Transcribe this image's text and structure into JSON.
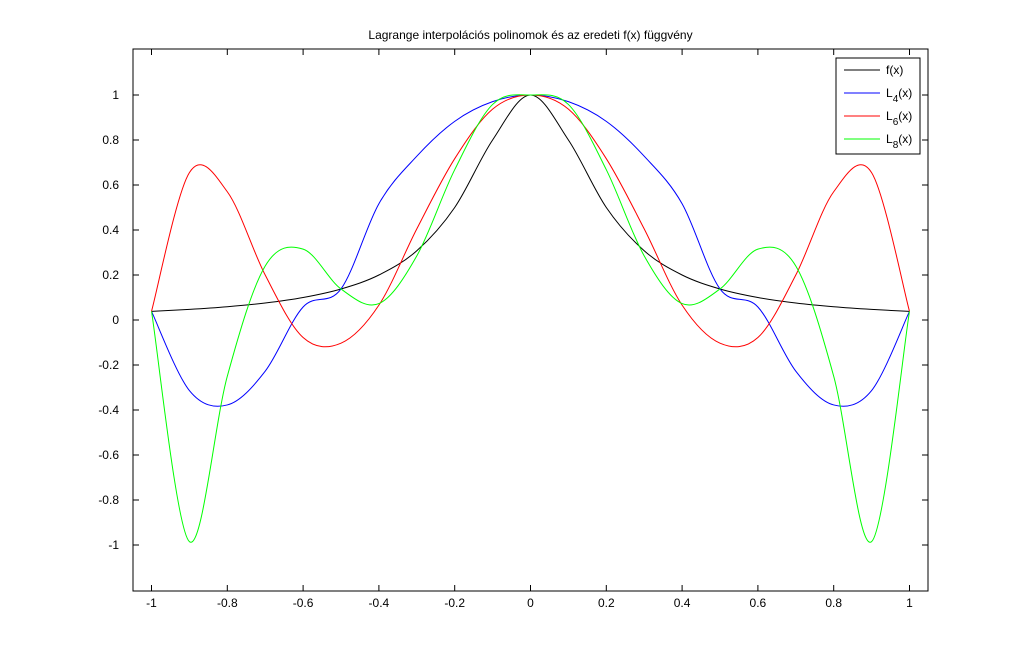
{
  "chart_data": {
    "type": "line",
    "title": "Lagrange interpolációs polinomok és az eredeti f(x) függvény",
    "xlabel": "",
    "ylabel": "",
    "xlim": [
      -1.05,
      1.05
    ],
    "ylim": [
      -1.2,
      1.2
    ],
    "x_ticks": [
      -1,
      -0.8,
      -0.6,
      -0.4,
      -0.2,
      0,
      0.2,
      0.4,
      0.6,
      0.8,
      1
    ],
    "x_tick_labels": [
      "-1",
      "-0.8",
      "-0.6",
      "-0.4",
      "-0.2",
      "0",
      "0.2",
      "0.4",
      "0.6",
      "0.8",
      "1"
    ],
    "y_ticks": [
      -1,
      -0.8,
      -0.6,
      -0.4,
      -0.2,
      0,
      0.2,
      0.4,
      0.6,
      0.8,
      1
    ],
    "y_tick_labels": [
      "-1",
      "-0.8",
      "-0.6",
      "-0.4",
      "-0.2",
      "0",
      "0.2",
      "0.4",
      "0.6",
      "0.8",
      "1"
    ],
    "grid": false,
    "legend_position": "top-right",
    "x": [
      -1.0,
      -0.9,
      -0.8,
      -0.7,
      -0.6,
      -0.5,
      -0.4,
      -0.3,
      -0.2,
      -0.1,
      0.0,
      0.1,
      0.2,
      0.3,
      0.4,
      0.5,
      0.6,
      0.7,
      0.8,
      0.9,
      1.0
    ],
    "series": [
      {
        "name": "f(x)",
        "legend": {
          "base": "f(x)",
          "sub": "",
          "suffix": ""
        },
        "color": "#000000",
        "values": [
          0.0385,
          0.0471,
          0.0588,
          0.0755,
          0.1,
          0.1379,
          0.2,
          0.3077,
          0.5,
          0.8,
          1.0,
          0.8,
          0.5,
          0.3077,
          0.2,
          0.1379,
          0.1,
          0.0755,
          0.0588,
          0.0471,
          0.0385
        ]
      },
      {
        "name": "L4(x)",
        "legend": {
          "base": "L",
          "sub": "4",
          "suffix": "(x)"
        },
        "color": "#0000ff",
        "values": [
          0.0385,
          -0.3135,
          -0.3775,
          -0.2275,
          0.0577,
          0.1379,
          0.5169,
          0.7279,
          0.8829,
          0.9705,
          1.0,
          0.9705,
          0.8829,
          0.7279,
          0.5169,
          0.1379,
          0.0577,
          -0.2275,
          -0.3775,
          -0.3135,
          0.0385
        ]
      },
      {
        "name": "L6(x)",
        "legend": {
          "base": "L",
          "sub": "6",
          "suffix": "(x)"
        },
        "color": "#ff0000",
        "values": [
          0.0385,
          0.655,
          0.57,
          0.2,
          -0.078,
          -0.103,
          0.066,
          0.405,
          0.717,
          0.937,
          1.0,
          0.937,
          0.717,
          0.405,
          0.066,
          -0.103,
          -0.078,
          0.2,
          0.57,
          0.655,
          0.0385
        ]
      },
      {
        "name": "L8(x)",
        "legend": {
          "base": "L",
          "sub": "8",
          "suffix": "(x)"
        },
        "color": "#00ff00",
        "values": [
          0.0385,
          -0.985,
          -0.25,
          0.24,
          0.315,
          0.138,
          0.073,
          0.285,
          0.668,
          0.958,
          1.0,
          0.958,
          0.668,
          0.285,
          0.073,
          0.138,
          0.315,
          0.24,
          -0.25,
          -0.985,
          0.0385
        ]
      }
    ]
  }
}
